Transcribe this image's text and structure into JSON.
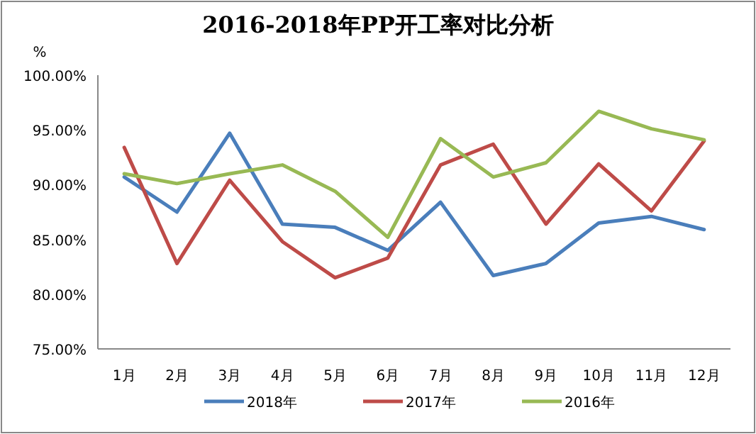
{
  "chart_data": {
    "type": "line",
    "title": "2016-2018年PP开工率对比分析",
    "ylabel": "%",
    "categories": [
      "1月",
      "2月",
      "3月",
      "4月",
      "5月",
      "6月",
      "7月",
      "8月",
      "9月",
      "10月",
      "11月",
      "12月"
    ],
    "series": [
      {
        "name": "2018年",
        "color": "#4a7ebb",
        "values": [
          90.7,
          87.5,
          94.7,
          86.4,
          86.1,
          84.0,
          88.4,
          81.7,
          82.8,
          86.5,
          87.1,
          85.9
        ]
      },
      {
        "name": "2017年",
        "color": "#be4b48",
        "values": [
          93.4,
          82.8,
          90.4,
          84.8,
          81.5,
          83.3,
          91.8,
          93.7,
          86.4,
          91.9,
          87.6,
          94.0
        ]
      },
      {
        "name": "2016年",
        "color": "#98b954",
        "values": [
          91.0,
          90.1,
          91.0,
          91.8,
          89.4,
          85.2,
          94.2,
          90.7,
          92.0,
          96.7,
          95.1,
          94.1
        ]
      }
    ],
    "ylim": [
      75,
      100
    ],
    "yticks": [
      {
        "value": 75,
        "label": "75.00%"
      },
      {
        "value": 80,
        "label": "80.00%"
      },
      {
        "value": 85,
        "label": "85.00%"
      },
      {
        "value": 90,
        "label": "90.00%"
      },
      {
        "value": 95,
        "label": "95.00%"
      },
      {
        "value": 100,
        "label": "100.00%"
      }
    ],
    "legend": "bottom",
    "grid": false,
    "marker": "none",
    "line_style": "solid"
  }
}
